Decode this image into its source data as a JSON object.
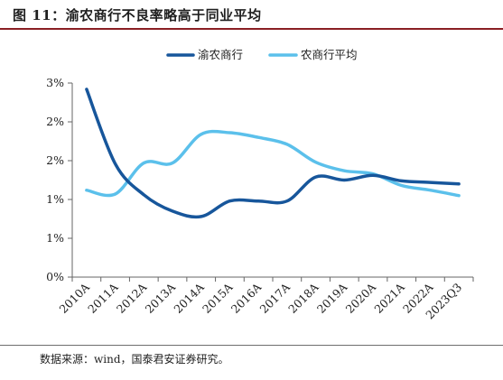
{
  "title": "图 11：渝农商行不良率略高于同业平均",
  "source": "数据来源：wind，国泰君安证券研究。",
  "chart_data": {
    "type": "line",
    "categories": [
      "2010A",
      "2011A",
      "2012A",
      "2013A",
      "2014A",
      "2015A",
      "2016A",
      "2017A",
      "2018A",
      "2019A",
      "2020A",
      "2021A",
      "2022A",
      "2023Q3"
    ],
    "y_tick_labels": [
      "0%",
      "1%",
      "1%",
      "2%",
      "2%",
      "3%"
    ],
    "y_ticks": [
      0,
      0.5,
      1.0,
      1.5,
      2.0,
      2.5
    ],
    "ylim": [
      0,
      2.5
    ],
    "grid": false,
    "legend_position": "top-center",
    "series": [
      {
        "name": "渝农商行",
        "color": "#17569b",
        "values": [
          2.42,
          1.46,
          1.06,
          0.85,
          0.78,
          0.98,
          0.98,
          0.98,
          1.29,
          1.25,
          1.31,
          1.24,
          1.22,
          1.2
        ]
      },
      {
        "name": "农商行平均",
        "color": "#5bc0eb",
        "values": [
          1.12,
          1.07,
          1.47,
          1.47,
          1.84,
          1.86,
          1.8,
          1.71,
          1.48,
          1.37,
          1.33,
          1.18,
          1.12,
          1.05
        ]
      }
    ]
  }
}
